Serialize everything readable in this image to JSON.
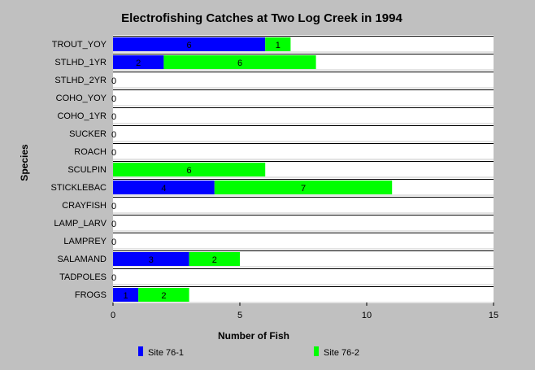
{
  "chart_data": {
    "type": "bar",
    "orientation": "horizontal",
    "stacked": true,
    "title": "Electrofishing Catches at Two Log Creek in 1994",
    "xlabel": "Number of Fish",
    "ylabel": "Species",
    "xlim": [
      0,
      15
    ],
    "xticks": [
      0,
      5,
      10,
      15
    ],
    "grid": false,
    "legend_position": "bottom",
    "background": "#c0c0c0",
    "plot_background": "#ffffff",
    "categories": [
      "TROUT_YOY",
      "STLHD_1YR",
      "STLHD_2YR",
      "COHO_YOY",
      "COHO_1YR",
      "SUCKER",
      "ROACH",
      "SCULPIN",
      "STICKLEBAC",
      "CRAYFISH",
      "LAMP_LARV",
      "LAMPREY",
      "SALAMAND",
      "TADPOLES",
      "FROGS"
    ],
    "series": [
      {
        "name": "Site 76-1",
        "color": "#0000ff",
        "values": [
          6,
          2,
          0,
          0,
          0,
          0,
          0,
          0,
          4,
          0,
          0,
          0,
          3,
          0,
          1
        ]
      },
      {
        "name": "Site 76-2",
        "color": "#00ff00",
        "values": [
          1,
          6,
          0,
          0,
          0,
          0,
          0,
          6,
          7,
          0,
          0,
          0,
          2,
          0,
          2
        ]
      }
    ]
  }
}
